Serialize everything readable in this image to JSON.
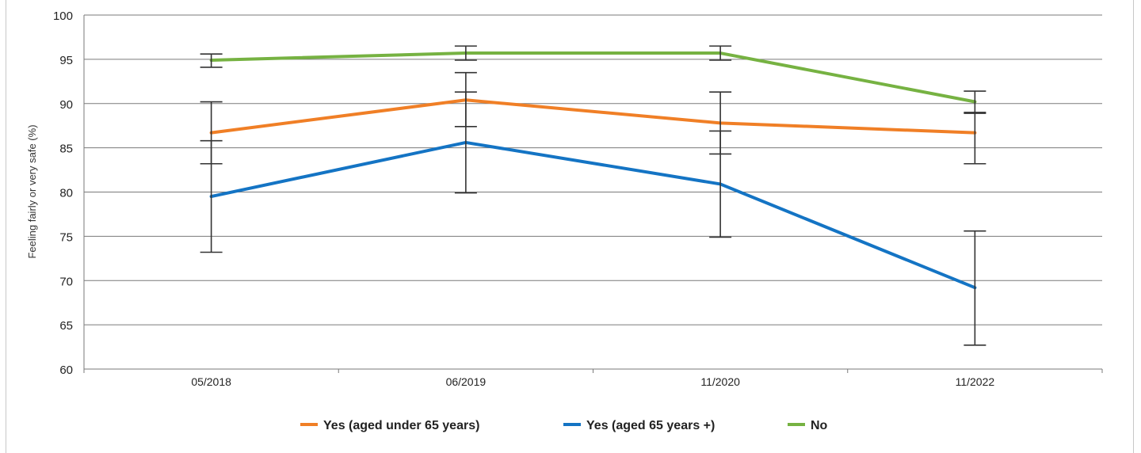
{
  "chart_data": {
    "type": "line",
    "title": "",
    "xlabel": "",
    "ylabel": "Feeling fairly or very safe (%)",
    "categories": [
      "05/2018",
      "06/2019",
      "11/2020",
      "11/2022"
    ],
    "ylim": [
      60,
      100
    ],
    "yticks": [
      60,
      65,
      70,
      75,
      80,
      85,
      90,
      95,
      100
    ],
    "grid": true,
    "legend_position": "bottom",
    "series": [
      {
        "name": "Yes (aged under 65 years)",
        "color": "#f07f26",
        "values": [
          86.7,
          90.4,
          87.8,
          86.7
        ],
        "error_low": [
          83.2,
          87.4,
          84.3,
          83.2
        ],
        "error_high": [
          90.2,
          93.5,
          91.3,
          89.0
        ]
      },
      {
        "name": "Yes (aged 65 years +)",
        "color": "#1474c4",
        "values": [
          79.5,
          85.6,
          80.9,
          69.2
        ],
        "error_low": [
          73.2,
          79.9,
          74.9,
          62.7
        ],
        "error_high": [
          85.8,
          91.3,
          86.9,
          75.6
        ]
      },
      {
        "name": "No",
        "color": "#76b242",
        "values": [
          94.9,
          95.7,
          95.7,
          90.2
        ],
        "error_low": [
          94.1,
          94.9,
          94.9,
          88.9
        ],
        "error_high": [
          95.6,
          96.5,
          96.5,
          91.4
        ]
      }
    ]
  }
}
